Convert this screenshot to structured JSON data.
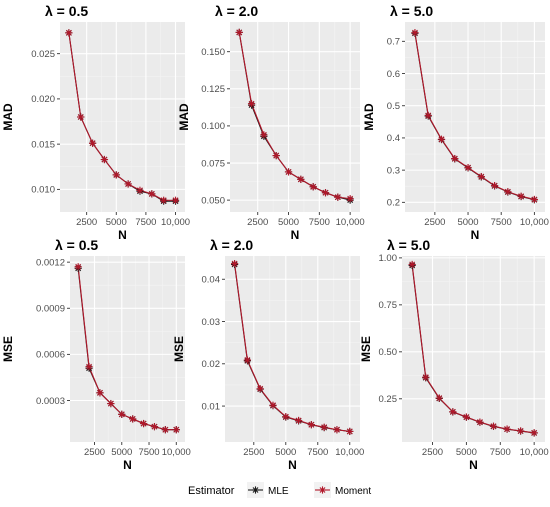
{
  "chart_data": [
    {
      "type": "line",
      "title": "λ = 0.5",
      "xlabel": "N",
      "ylabel": "MAD",
      "xlim": [
        250,
        10800
      ],
      "ylim": [
        0.0075,
        0.0285
      ],
      "x_ticks": [
        2500,
        5000,
        7500,
        10000
      ],
      "x_tick_labels": [
        "2500",
        "5000",
        "7500",
        "10,000"
      ],
      "y_ticks": [
        0.01,
        0.015,
        0.02,
        0.025
      ],
      "y_tick_labels": [
        "0.010",
        "0.015",
        "0.020",
        "0.025"
      ],
      "x": [
        1000,
        2000,
        3000,
        4000,
        5000,
        6000,
        7000,
        8000,
        9000,
        10000
      ],
      "series": [
        {
          "name": "MLE",
          "values": [
            0.0273,
            0.018,
            0.0151,
            0.0133,
            0.0116,
            0.0106,
            0.0098,
            0.0095,
            0.0087,
            0.0087
          ]
        },
        {
          "name": "Moment",
          "values": [
            0.0273,
            0.018,
            0.0151,
            0.0133,
            0.0116,
            0.0106,
            0.0099,
            0.0095,
            0.0088,
            0.0088
          ]
        }
      ]
    },
    {
      "type": "line",
      "title": "λ = 2.0",
      "xlabel": "N",
      "ylabel": "MAD",
      "xlim": [
        250,
        10800
      ],
      "ylim": [
        0.042,
        0.17
      ],
      "x_ticks": [
        2500,
        5000,
        7500,
        10000
      ],
      "x_tick_labels": [
        "2500",
        "5000",
        "7500",
        "10,000"
      ],
      "y_ticks": [
        0.05,
        0.075,
        0.1,
        0.125,
        0.15
      ],
      "y_tick_labels": [
        "0.050",
        "0.075",
        "0.100",
        "0.125",
        "0.150"
      ],
      "x": [
        1000,
        2000,
        3000,
        4000,
        5000,
        6000,
        7000,
        8000,
        9000,
        10000
      ],
      "series": [
        {
          "name": "MLE",
          "values": [
            0.163,
            0.114,
            0.093,
            0.08,
            0.069,
            0.064,
            0.059,
            0.055,
            0.052,
            0.05
          ]
        },
        {
          "name": "Moment",
          "values": [
            0.163,
            0.115,
            0.094,
            0.08,
            0.069,
            0.064,
            0.059,
            0.055,
            0.052,
            0.051
          ]
        }
      ]
    },
    {
      "type": "line",
      "title": "λ = 5.0",
      "xlabel": "N",
      "ylabel": "MAD",
      "xlim": [
        250,
        10800
      ],
      "ylim": [
        0.17,
        0.76
      ],
      "x_ticks": [
        2500,
        5000,
        7500,
        10000
      ],
      "x_tick_labels": [
        "2500",
        "5000",
        "7500",
        "10,000"
      ],
      "y_ticks": [
        0.2,
        0.3,
        0.4,
        0.5,
        0.6,
        0.7
      ],
      "y_tick_labels": [
        "0.2",
        "0.3",
        "0.4",
        "0.5",
        "0.6",
        "0.7"
      ],
      "x": [
        1000,
        2000,
        3000,
        4000,
        5000,
        6000,
        7000,
        8000,
        9000,
        10000
      ],
      "series": [
        {
          "name": "MLE",
          "values": [
            0.725,
            0.468,
            0.395,
            0.335,
            0.307,
            0.279,
            0.251,
            0.232,
            0.218,
            0.208
          ]
        },
        {
          "name": "Moment",
          "values": [
            0.727,
            0.47,
            0.396,
            0.336,
            0.308,
            0.28,
            0.252,
            0.233,
            0.219,
            0.209
          ]
        }
      ]
    },
    {
      "type": "line",
      "title": "λ = 0.5",
      "xlabel": "N",
      "ylabel": "MSE",
      "xlim": [
        250,
        10800
      ],
      "ylim": [
        3e-05,
        0.00124
      ],
      "x_ticks": [
        2500,
        5000,
        7500,
        10000
      ],
      "x_tick_labels": [
        "2500",
        "5000",
        "7500",
        "10,000"
      ],
      "y_ticks": [
        0.0003,
        0.0006,
        0.0009,
        0.0012
      ],
      "y_tick_labels": [
        "0.0003",
        "0.0006",
        "0.0009",
        "0.0012"
      ],
      "x": [
        1000,
        2000,
        3000,
        4000,
        5000,
        6000,
        7000,
        8000,
        9000,
        10000
      ],
      "series": [
        {
          "name": "MLE",
          "values": [
            0.00116,
            0.00051,
            0.00035,
            0.00028,
            0.00021,
            0.00018,
            0.00015,
            0.00013,
            0.00011,
            0.00011
          ]
        },
        {
          "name": "Moment",
          "values": [
            0.00117,
            0.00052,
            0.00035,
            0.00028,
            0.00021,
            0.00018,
            0.00015,
            0.00013,
            0.00011,
            0.00011
          ]
        }
      ]
    },
    {
      "type": "line",
      "title": "λ = 2.0",
      "xlabel": "N",
      "ylabel": "MSE",
      "xlim": [
        250,
        10800
      ],
      "ylim": [
        0.0015,
        0.0455
      ],
      "x_ticks": [
        2500,
        5000,
        7500,
        10000
      ],
      "x_tick_labels": [
        "2500",
        "5000",
        "7500",
        "10,000"
      ],
      "y_ticks": [
        0.01,
        0.02,
        0.03,
        0.04
      ],
      "y_tick_labels": [
        "0.01",
        "0.02",
        "0.03",
        "0.04"
      ],
      "x": [
        1000,
        2000,
        3000,
        4000,
        5000,
        6000,
        7000,
        8000,
        9000,
        10000
      ],
      "series": [
        {
          "name": "MLE",
          "values": [
            0.0435,
            0.0207,
            0.014,
            0.0101,
            0.0074,
            0.0065,
            0.0056,
            0.0049,
            0.0044,
            0.004
          ]
        },
        {
          "name": "Moment",
          "values": [
            0.0437,
            0.0209,
            0.0141,
            0.0102,
            0.0075,
            0.0066,
            0.0056,
            0.005,
            0.0044,
            0.004
          ]
        }
      ]
    },
    {
      "type": "line",
      "title": "λ = 5.0",
      "xlabel": "N",
      "ylabel": "MSE",
      "xlim": [
        250,
        10800
      ],
      "ylim": [
        0.02,
        1.01
      ],
      "x_ticks": [
        2500,
        5000,
        7500,
        10000
      ],
      "x_tick_labels": [
        "2500",
        "5000",
        "7500",
        "10,000"
      ],
      "y_ticks": [
        0.25,
        0.5,
        0.75,
        1.0
      ],
      "y_tick_labels": [
        "0.25",
        "0.50",
        "0.75",
        "1.00"
      ],
      "x": [
        1000,
        2000,
        3000,
        4000,
        5000,
        6000,
        7000,
        8000,
        9000,
        10000
      ],
      "series": [
        {
          "name": "MLE",
          "values": [
            0.96,
            0.362,
            0.252,
            0.18,
            0.152,
            0.125,
            0.103,
            0.088,
            0.078,
            0.068
          ]
        },
        {
          "name": "Moment",
          "values": [
            0.965,
            0.365,
            0.254,
            0.181,
            0.153,
            0.126,
            0.104,
            0.089,
            0.079,
            0.069
          ]
        }
      ]
    }
  ],
  "legend": {
    "title": "Estimator",
    "placement": "bottom",
    "items": [
      {
        "label": "MLE",
        "color": "#1a1a1a"
      },
      {
        "label": "Moment",
        "color": "#b2182b"
      }
    ]
  },
  "colors": {
    "panel_background": "#ebebeb",
    "grid_major": "#ffffff",
    "grid_minor": "#f4f4f4",
    "MLE": "#1a1a1a",
    "Moment": "#b2182b"
  }
}
